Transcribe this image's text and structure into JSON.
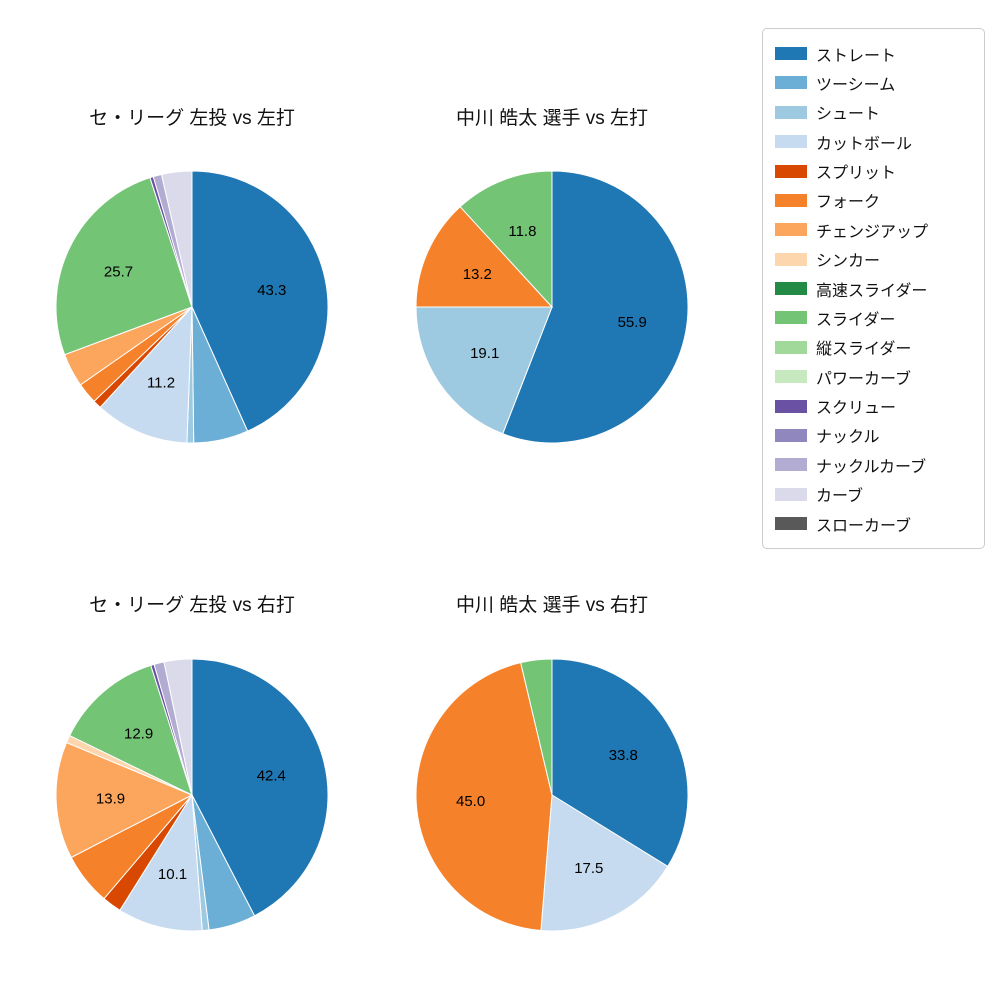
{
  "page": {
    "background": "#ffffff"
  },
  "legend": {
    "items": [
      {
        "label": "ストレート",
        "color": "#1f77b4"
      },
      {
        "label": "ツーシーム",
        "color": "#6baed6"
      },
      {
        "label": "シュート",
        "color": "#9ecae1"
      },
      {
        "label": "カットボール",
        "color": "#c6dbef"
      },
      {
        "label": "スプリット",
        "color": "#d94801"
      },
      {
        "label": "フォーク",
        "color": "#f5822a"
      },
      {
        "label": "チェンジアップ",
        "color": "#fca55d"
      },
      {
        "label": "シンカー",
        "color": "#fdd6ae"
      },
      {
        "label": "高速スライダー",
        "color": "#238b45"
      },
      {
        "label": "スライダー",
        "color": "#74c476"
      },
      {
        "label": "縦スライダー",
        "color": "#a1d99b"
      },
      {
        "label": "パワーカーブ",
        "color": "#c7e9c0"
      },
      {
        "label": "スクリュー",
        "color": "#6a51a3"
      },
      {
        "label": "ナックル",
        "color": "#8f87be"
      },
      {
        "label": "ナックルカーブ",
        "color": "#b2abd2"
      },
      {
        "label": "カーブ",
        "color": "#dadaeb"
      },
      {
        "label": "スローカーブ",
        "color": "#595959"
      }
    ]
  },
  "chart_data": [
    {
      "type": "pie",
      "title": "セ・リーグ 左投 vs 左打",
      "start_angle_deg": 90,
      "direction": "clockwise",
      "label_min": 10,
      "slices": [
        {
          "name": "ストレート",
          "value": 43.3
        },
        {
          "name": "ツーシーム",
          "value": 6.5
        },
        {
          "name": "シュート",
          "value": 0.8
        },
        {
          "name": "カットボール",
          "value": 11.2
        },
        {
          "name": "スプリット",
          "value": 1.0
        },
        {
          "name": "フォーク",
          "value": 2.5
        },
        {
          "name": "チェンジアップ",
          "value": 4.0
        },
        {
          "name": "スライダー",
          "value": 25.7
        },
        {
          "name": "スクリュー",
          "value": 0.4
        },
        {
          "name": "ナックルカーブ",
          "value": 1.0
        },
        {
          "name": "カーブ",
          "value": 3.6
        }
      ]
    },
    {
      "type": "pie",
      "title": "中川 皓太 選手 vs 左打",
      "start_angle_deg": 90,
      "direction": "clockwise",
      "label_min": 10,
      "slices": [
        {
          "name": "ストレート",
          "value": 55.9
        },
        {
          "name": "シュート",
          "value": 19.1
        },
        {
          "name": "フォーク",
          "value": 13.2
        },
        {
          "name": "スライダー",
          "value": 11.8
        }
      ]
    },
    {
      "type": "pie",
      "title": "セ・リーグ 左投 vs 右打",
      "start_angle_deg": 90,
      "direction": "clockwise",
      "label_min": 10,
      "slices": [
        {
          "name": "ストレート",
          "value": 42.4
        },
        {
          "name": "ツーシーム",
          "value": 5.6
        },
        {
          "name": "シュート",
          "value": 0.8
        },
        {
          "name": "カットボール",
          "value": 10.1
        },
        {
          "name": "スプリット",
          "value": 2.3
        },
        {
          "name": "フォーク",
          "value": 6.2
        },
        {
          "name": "チェンジアップ",
          "value": 13.9
        },
        {
          "name": "シンカー",
          "value": 0.9
        },
        {
          "name": "スライダー",
          "value": 12.9
        },
        {
          "name": "スクリュー",
          "value": 0.4
        },
        {
          "name": "ナックルカーブ",
          "value": 1.2
        },
        {
          "name": "カーブ",
          "value": 3.3
        }
      ]
    },
    {
      "type": "pie",
      "title": "中川 皓太 選手 vs 右打",
      "start_angle_deg": 90,
      "direction": "clockwise",
      "label_min": 10,
      "slices": [
        {
          "name": "ストレート",
          "value": 33.8
        },
        {
          "name": "カットボール",
          "value": 17.5
        },
        {
          "name": "フォーク",
          "value": 45.0
        },
        {
          "name": "スライダー",
          "value": 3.7
        }
      ]
    }
  ]
}
